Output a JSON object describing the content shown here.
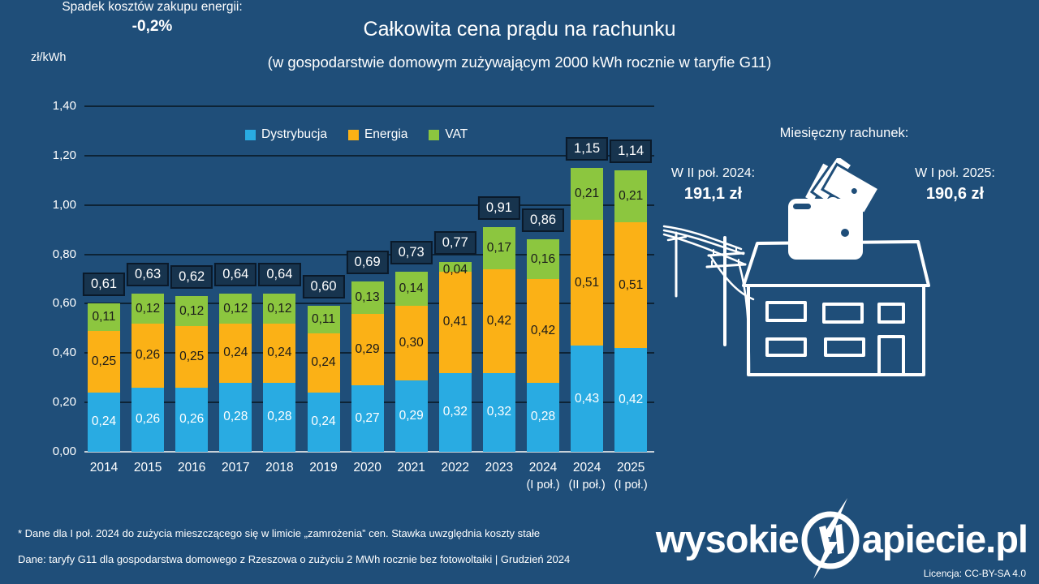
{
  "title": "Całkowita cena prądu na rachunku",
  "subtitle": "(w gospodarstwie domowym zużywającym 2000 kWh rocznie w taryfie G11)",
  "y_axis_unit": "zł/kWh",
  "colors": {
    "background": "#1F4E79",
    "dystrybucja": "#29ABE2",
    "energia": "#FBB116",
    "vat": "#8CC63F",
    "gridline": "#0D2335",
    "total_box_fill": "#17344E",
    "total_box_border": "#0A1929",
    "axis_line": "#C7D1D9"
  },
  "chart_data": {
    "type": "bar",
    "stacked": true,
    "title": "Całkowita cena prądu na rachunku",
    "subtitle": "(w gospodarstwie domowym zużywającym 2000 kWh rocznie w taryfie G11)",
    "ylabel": "zł/kWh",
    "legend_position": "top-center",
    "grid": true,
    "categories": [
      {
        "label": "2014"
      },
      {
        "label": "2015"
      },
      {
        "label": "2016"
      },
      {
        "label": "2017"
      },
      {
        "label": "2018"
      },
      {
        "label": "2019"
      },
      {
        "label": "2020"
      },
      {
        "label": "2021"
      },
      {
        "label": "2022"
      },
      {
        "label": "2023"
      },
      {
        "label": "2024",
        "sub": "(I poł.)"
      },
      {
        "label": "2024",
        "sub": "(II poł.)"
      },
      {
        "label": "2025",
        "sub": "(I poł.)"
      }
    ],
    "series": [
      {
        "name": "Dystrybucja",
        "color": "#29ABE2",
        "text_color": "#FFFFFF",
        "values": [
          0.24,
          0.26,
          0.26,
          0.28,
          0.28,
          0.24,
          0.27,
          0.29,
          0.32,
          0.32,
          0.28,
          0.43,
          0.42
        ],
        "labels": [
          "0,24",
          "0,26",
          "0,26",
          "0,28",
          "0,28",
          "0,24",
          "0,27",
          "0,29",
          "0,32",
          "0,32",
          "0,28",
          "0,43",
          "0,42"
        ]
      },
      {
        "name": "Energia",
        "color": "#FBB116",
        "text_color": "#1A1A1A",
        "values": [
          0.25,
          0.26,
          0.25,
          0.24,
          0.24,
          0.24,
          0.29,
          0.3,
          0.41,
          0.42,
          0.42,
          0.51,
          0.51
        ],
        "labels": [
          "0,25",
          "0,26",
          "0,25",
          "0,24",
          "0,24",
          "0,24",
          "0,29",
          "0,30",
          "0,41",
          "0,42",
          "0,42",
          "0,51",
          "0,51"
        ]
      },
      {
        "name": "VAT",
        "color": "#8CC63F",
        "text_color": "#1A1A1A",
        "values": [
          0.11,
          0.12,
          0.12,
          0.12,
          0.12,
          0.11,
          0.13,
          0.14,
          0.04,
          0.17,
          0.16,
          0.21,
          0.21
        ],
        "labels": [
          "0,11",
          "0,12",
          "0,12",
          "0,12",
          "0,12",
          "0,11",
          "0,13",
          "0,14",
          "0,04",
          "0,17",
          "0,16",
          "0,21",
          "0,21"
        ]
      }
    ],
    "totals": {
      "values": [
        0.61,
        0.63,
        0.62,
        0.64,
        0.64,
        0.6,
        0.69,
        0.73,
        0.77,
        0.91,
        0.86,
        1.15,
        1.14
      ],
      "labels": [
        "0,61",
        "0,63",
        "0,62",
        "0,64",
        "0,64",
        "0,60",
        "0,69",
        "0,73",
        "0,77",
        "0,91",
        "0,86",
        "1,15",
        "1,14"
      ]
    },
    "y_axis": {
      "ticks": [
        "0,00",
        "0,20",
        "0,40",
        "0,60",
        "0,80",
        "1,00",
        "1,20",
        "1,40"
      ],
      "step": 0.2,
      "max": 1.4
    }
  },
  "right_panel": {
    "heading": "Miesięczny rachunek:",
    "left": {
      "label": "W II poł. 2024:",
      "value": "191,1 zł"
    },
    "right": {
      "label": "W I poł. 2025:",
      "value": "190,6 zł"
    },
    "bottom": {
      "label": "Spadek kosztów zakupu energii:",
      "value": "-0,2%"
    }
  },
  "footnotes": {
    "note1": "* Dane dla I poł. 2024 do zużycia mieszczącego się w limicie „zamrożenia” cen. Stawka uwzględnia koszty stałe",
    "note2": "Dane: taryfy G11 dla gospodarstwa domowego z Rzeszowa o zużyciu 2 MWh rocznie bez fotowoltaiki  |  Grudzień 2024"
  },
  "branding": {
    "logo_left": "wysokie",
    "logo_right": "apiecie.pl",
    "license": "Licencja: CC-BY-SA 4.0"
  }
}
